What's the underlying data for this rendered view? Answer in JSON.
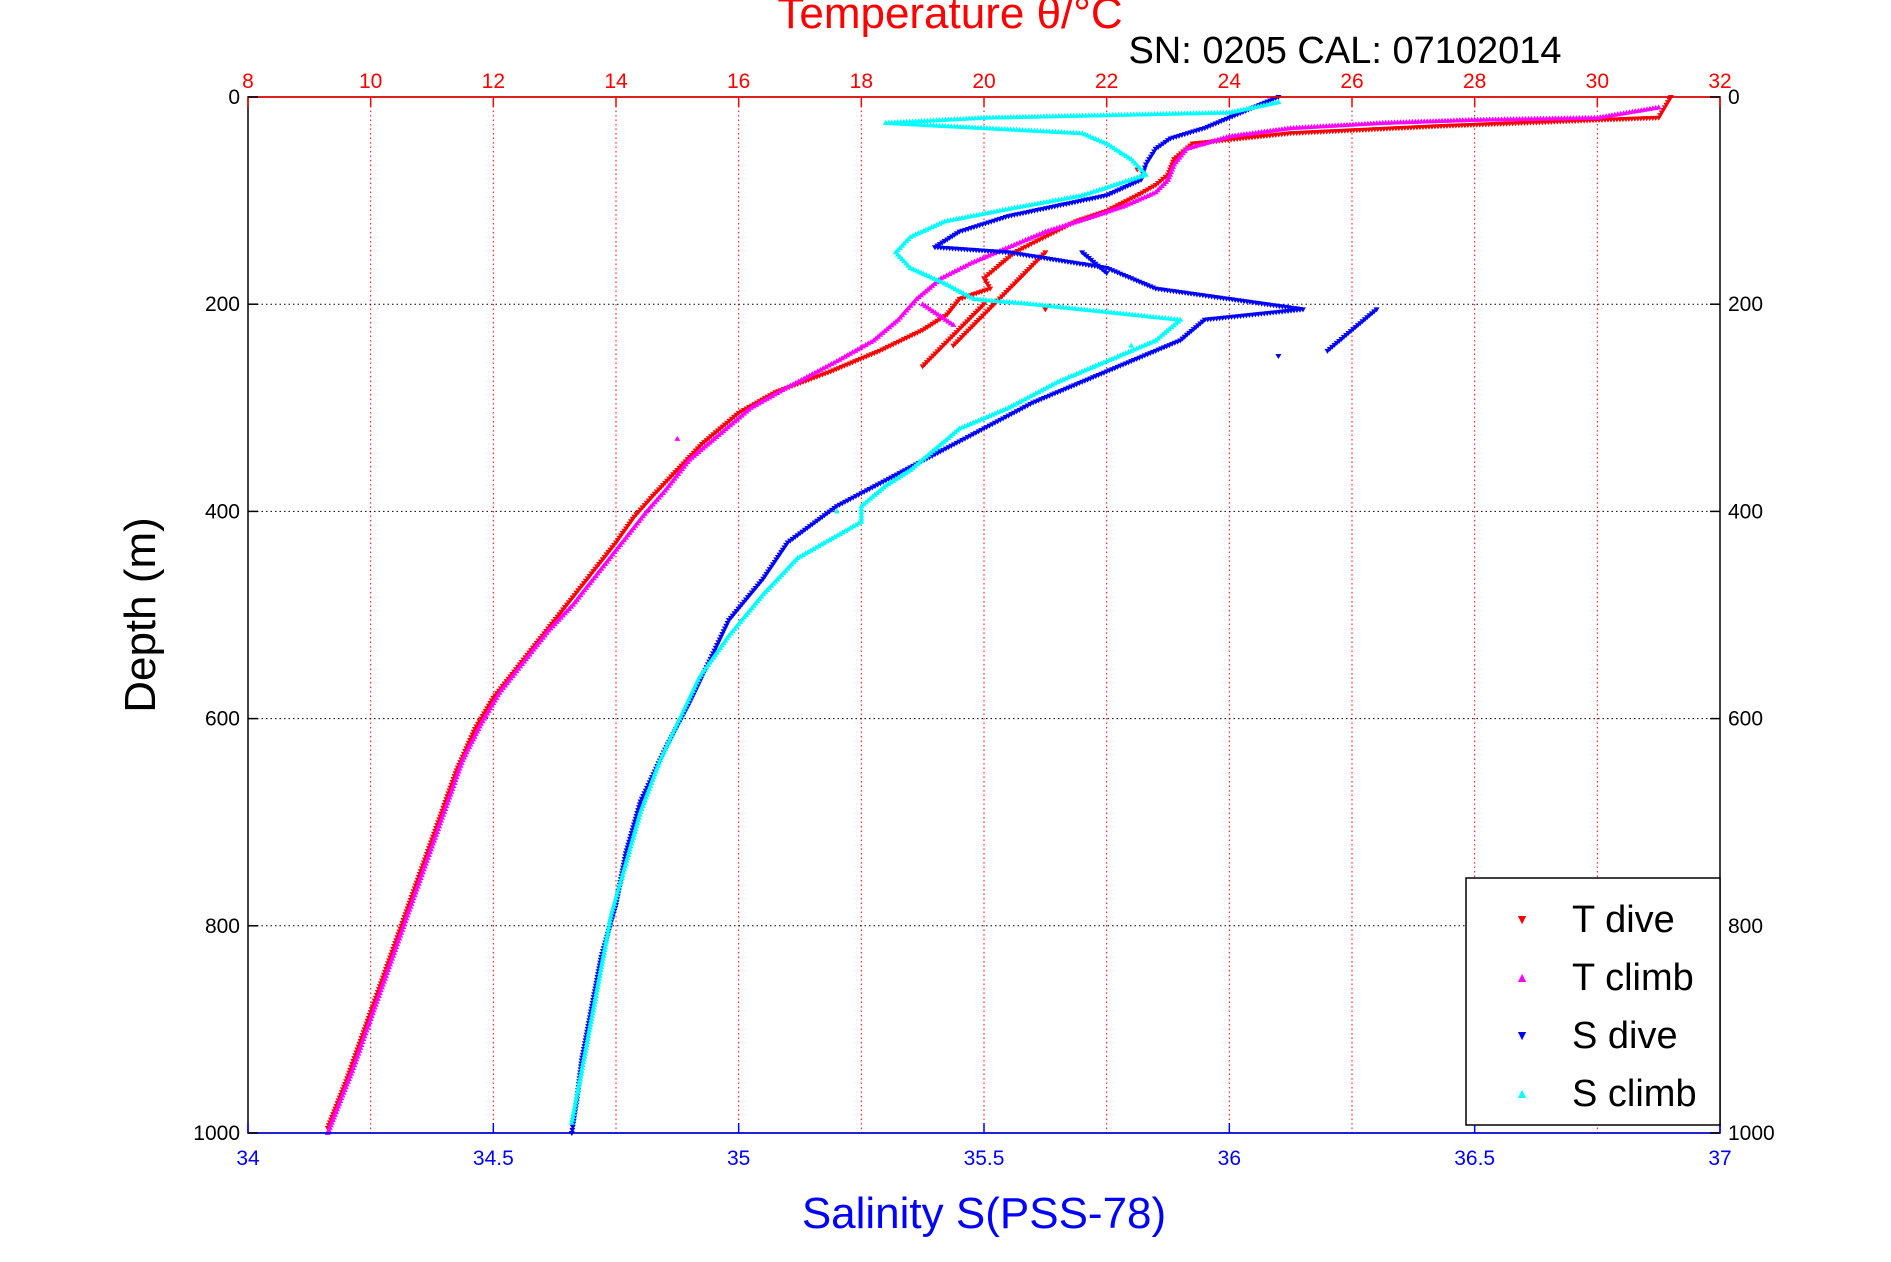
{
  "chart_data": {
    "type": "scatter",
    "title": "Temperature θ/°C",
    "annotation": "SN: 0205  CAL: 07102014",
    "ylabel": "Depth (m)",
    "xlabel_bottom": "Salinity S(PSS-78)",
    "y_axis": {
      "range": [
        0,
        1000
      ],
      "reversed": true,
      "ticks": [
        0,
        200,
        400,
        600,
        800,
        1000
      ]
    },
    "x_top": {
      "label": "Temperature θ/°C",
      "range": [
        8,
        32
      ],
      "ticks": [
        8,
        10,
        12,
        14,
        16,
        18,
        20,
        22,
        24,
        26,
        28,
        30,
        32
      ],
      "grid": true
    },
    "x_bottom": {
      "label": "Salinity S(PSS-78)",
      "range": [
        34,
        37
      ],
      "ticks": [
        "34",
        "34.5",
        "35",
        "35.5",
        "36",
        "36.5",
        "37"
      ]
    },
    "legend": {
      "placement": "bottom-right",
      "entries": [
        "T dive",
        "T climb",
        "S dive",
        "S climb"
      ]
    },
    "colors": {
      "temperature_axis": "#ff0000",
      "salinity_axis": "#0000ff",
      "T dive": "#ff0000",
      "T climb": "#ff00ff",
      "S dive": "#0000ff",
      "S climb": "#00ffff"
    },
    "series": [
      {
        "name": "T dive",
        "axis": "temperature",
        "marker": "triangle-down",
        "points": [
          [
            31.2,
            0
          ],
          [
            31.1,
            10
          ],
          [
            31.0,
            20
          ],
          [
            27.5,
            28
          ],
          [
            25.0,
            35
          ],
          [
            23.4,
            45
          ],
          [
            23.1,
            60
          ],
          [
            23.0,
            75
          ],
          [
            22.8,
            85
          ],
          [
            22.5,
            95
          ],
          [
            22.0,
            110
          ],
          [
            21.5,
            120
          ],
          [
            21.0,
            135
          ],
          [
            20.5,
            150
          ],
          [
            20.2,
            165
          ],
          [
            20.0,
            175
          ],
          [
            20.1,
            185
          ],
          [
            19.6,
            195
          ],
          [
            19.4,
            210
          ],
          [
            19.0,
            225
          ],
          [
            18.3,
            245
          ],
          [
            17.5,
            265
          ],
          [
            16.6,
            285
          ],
          [
            16.0,
            305
          ],
          [
            15.4,
            335
          ],
          [
            15.0,
            360
          ],
          [
            14.6,
            385
          ],
          [
            14.3,
            405
          ],
          [
            14.0,
            430
          ],
          [
            13.6,
            460
          ],
          [
            13.2,
            490
          ],
          [
            12.8,
            520
          ],
          [
            12.4,
            550
          ],
          [
            12.0,
            580
          ],
          [
            11.7,
            610
          ],
          [
            11.4,
            650
          ],
          [
            11.1,
            700
          ],
          [
            10.8,
            750
          ],
          [
            10.5,
            800
          ],
          [
            10.2,
            850
          ],
          [
            9.9,
            900
          ],
          [
            9.6,
            950
          ],
          [
            9.3,
            995
          ],
          [
            22.5,
            70
          ],
          [
            21.0,
            150
          ],
          [
            20.5,
            180
          ],
          [
            19.5,
            240
          ],
          [
            21.0,
            205
          ],
          [
            20.0,
            200
          ],
          [
            19.0,
            260
          ]
        ]
      },
      {
        "name": "T climb",
        "axis": "temperature",
        "marker": "triangle-up",
        "points": [
          [
            31.0,
            10
          ],
          [
            30.0,
            20
          ],
          [
            28.0,
            22
          ],
          [
            26.5,
            25
          ],
          [
            25.0,
            30
          ],
          [
            24.0,
            38
          ],
          [
            23.3,
            50
          ],
          [
            23.1,
            65
          ],
          [
            23.0,
            80
          ],
          [
            22.8,
            92
          ],
          [
            22.3,
            105
          ],
          [
            21.8,
            115
          ],
          [
            21.0,
            130
          ],
          [
            20.4,
            145
          ],
          [
            19.8,
            160
          ],
          [
            19.3,
            175
          ],
          [
            18.9,
            195
          ],
          [
            18.6,
            215
          ],
          [
            18.2,
            235
          ],
          [
            17.6,
            255
          ],
          [
            16.8,
            280
          ],
          [
            16.2,
            300
          ],
          [
            15.6,
            330
          ],
          [
            15.2,
            350
          ],
          [
            14.8,
            380
          ],
          [
            14.5,
            400
          ],
          [
            14.1,
            430
          ],
          [
            13.7,
            460
          ],
          [
            13.3,
            490
          ],
          [
            12.9,
            515
          ],
          [
            12.5,
            545
          ],
          [
            12.1,
            575
          ],
          [
            11.8,
            605
          ],
          [
            11.5,
            640
          ],
          [
            11.2,
            690
          ],
          [
            10.9,
            740
          ],
          [
            10.6,
            790
          ],
          [
            10.3,
            840
          ],
          [
            10.0,
            890
          ],
          [
            9.7,
            940
          ],
          [
            9.4,
            985
          ],
          [
            9.3,
            1000
          ],
          [
            19.0,
            200
          ],
          [
            19.5,
            220
          ],
          [
            15.0,
            330
          ]
        ]
      },
      {
        "name": "S dive",
        "axis": "salinity",
        "marker": "triangle-down",
        "points": [
          [
            36.1,
            0
          ],
          [
            36.05,
            10
          ],
          [
            36.0,
            20
          ],
          [
            35.95,
            30
          ],
          [
            35.88,
            40
          ],
          [
            35.85,
            50
          ],
          [
            35.83,
            65
          ],
          [
            35.82,
            80
          ],
          [
            35.75,
            95
          ],
          [
            35.65,
            105
          ],
          [
            35.55,
            115
          ],
          [
            35.45,
            130
          ],
          [
            35.4,
            145
          ],
          [
            35.55,
            150
          ],
          [
            35.75,
            165
          ],
          [
            35.85,
            185
          ],
          [
            36.0,
            195
          ],
          [
            36.15,
            205
          ],
          [
            35.95,
            215
          ],
          [
            35.9,
            235
          ],
          [
            35.8,
            255
          ],
          [
            35.7,
            275
          ],
          [
            35.6,
            295
          ],
          [
            35.5,
            320
          ],
          [
            35.4,
            345
          ],
          [
            35.3,
            370
          ],
          [
            35.2,
            395
          ],
          [
            35.1,
            430
          ],
          [
            35.05,
            465
          ],
          [
            34.98,
            505
          ],
          [
            34.94,
            545
          ],
          [
            34.9,
            585
          ],
          [
            34.85,
            630
          ],
          [
            34.8,
            680
          ],
          [
            34.77,
            730
          ],
          [
            34.75,
            780
          ],
          [
            34.72,
            830
          ],
          [
            34.7,
            880
          ],
          [
            34.68,
            930
          ],
          [
            34.67,
            970
          ],
          [
            34.66,
            1000
          ],
          [
            36.3,
            205
          ],
          [
            36.2,
            245
          ],
          [
            35.7,
            150
          ],
          [
            35.75,
            170
          ],
          [
            36.1,
            250
          ]
        ]
      },
      {
        "name": "S climb",
        "axis": "salinity",
        "marker": "triangle-up",
        "points": [
          [
            36.1,
            5
          ],
          [
            36.0,
            15
          ],
          [
            35.5,
            20
          ],
          [
            35.3,
            25
          ],
          [
            35.7,
            35
          ],
          [
            35.75,
            45
          ],
          [
            35.8,
            60
          ],
          [
            35.83,
            75
          ],
          [
            35.7,
            95
          ],
          [
            35.55,
            108
          ],
          [
            35.42,
            120
          ],
          [
            35.35,
            135
          ],
          [
            35.32,
            150
          ],
          [
            35.35,
            165
          ],
          [
            35.42,
            180
          ],
          [
            35.48,
            195
          ],
          [
            35.6,
            200
          ],
          [
            35.9,
            215
          ],
          [
            35.85,
            235
          ],
          [
            35.75,
            255
          ],
          [
            35.65,
            275
          ],
          [
            35.55,
            300
          ],
          [
            35.45,
            320
          ],
          [
            35.4,
            340
          ],
          [
            35.35,
            360
          ],
          [
            35.3,
            375
          ],
          [
            35.25,
            395
          ],
          [
            35.25,
            410
          ],
          [
            35.12,
            445
          ],
          [
            35.05,
            480
          ],
          [
            34.98,
            520
          ],
          [
            34.92,
            560
          ],
          [
            34.88,
            600
          ],
          [
            34.84,
            640
          ],
          [
            34.8,
            690
          ],
          [
            34.77,
            740
          ],
          [
            34.74,
            790
          ],
          [
            34.72,
            840
          ],
          [
            34.7,
            890
          ],
          [
            34.68,
            940
          ],
          [
            34.66,
            990
          ],
          [
            35.8,
            240
          ],
          [
            35.2,
            400
          ],
          [
            35.4,
            340
          ]
        ]
      }
    ]
  }
}
